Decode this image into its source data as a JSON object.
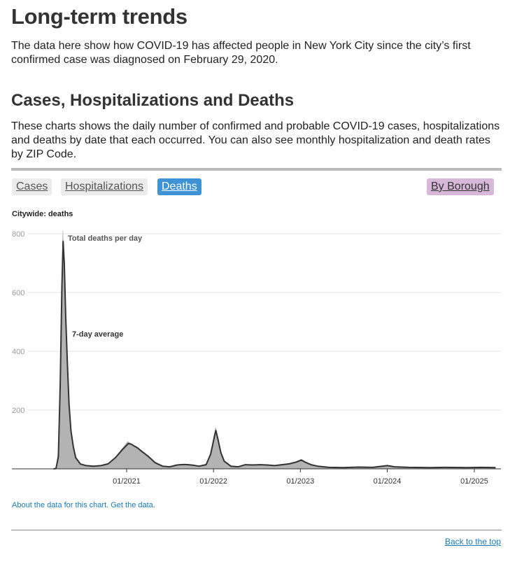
{
  "page": {
    "heading": "Long-term trends",
    "intro": "The data here show how COVID-19 has affected people in New York City since the city’s first confirmed case was diagnosed on February 29, 2020."
  },
  "section": {
    "heading": "Cases, Hospitalizations and Deaths",
    "description": "These charts shows the daily number of confirmed and probable COVID-19 cases, hospitalizations and deaths by date that each occurred. You can also see monthly hospitalization and death rates by ZIP Code."
  },
  "tabs": {
    "cases": "Cases",
    "hospitalizations": "Hospitalizations",
    "deaths": "Deaths",
    "by_borough": "By Borough",
    "active": "Deaths"
  },
  "chart_title": "Citywide: deaths",
  "links": {
    "about": "About the data for this chart. Get the data.",
    "back_to_top": "Back to the top"
  },
  "colors": {
    "area_fill": "#b3b3b3",
    "average_line": "#333333",
    "active_tab": "#3d93d6",
    "borough_tab": "#d7b8d9",
    "link": "#1a7ab8"
  },
  "chart_data": {
    "type": "area",
    "title": "",
    "xlabel": "",
    "ylabel": "",
    "ylim": [
      0,
      800
    ],
    "yticks": [
      200,
      400,
      600,
      800
    ],
    "xlim": [
      "2020-02-29",
      "2025-03-31"
    ],
    "xticks": [
      {
        "date": "2021-01-01",
        "label": "01/2021"
      },
      {
        "date": "2022-01-01",
        "label": "01/2022"
      },
      {
        "date": "2023-01-01",
        "label": "01/2023"
      },
      {
        "date": "2024-01-01",
        "label": "01/2024"
      },
      {
        "date": "2025-01-01",
        "label": "01/2025"
      }
    ],
    "grid": true,
    "annotations": [
      {
        "text": "Total deaths per day",
        "date": "2020-04-08",
        "value": 800
      },
      {
        "text": "7-day average",
        "date": "2020-04-26",
        "value": 440
      }
    ],
    "series": [
      {
        "name": "Total deaths per day",
        "points": [
          [
            "2020-02-29",
            0
          ],
          [
            "2020-03-10",
            2
          ],
          [
            "2020-03-20",
            60
          ],
          [
            "2020-03-28",
            320
          ],
          [
            "2020-04-04",
            650
          ],
          [
            "2020-04-08",
            800
          ],
          [
            "2020-04-12",
            720
          ],
          [
            "2020-04-18",
            560
          ],
          [
            "2020-04-25",
            380
          ],
          [
            "2020-05-02",
            230
          ],
          [
            "2020-05-10",
            140
          ],
          [
            "2020-05-20",
            80
          ],
          [
            "2020-06-01",
            40
          ],
          [
            "2020-06-20",
            18
          ],
          [
            "2020-07-15",
            12
          ],
          [
            "2020-08-15",
            10
          ],
          [
            "2020-09-15",
            12
          ],
          [
            "2020-10-15",
            18
          ],
          [
            "2020-11-15",
            40
          ],
          [
            "2020-12-15",
            70
          ],
          [
            "2021-01-05",
            92
          ],
          [
            "2021-01-15",
            88
          ],
          [
            "2021-01-25",
            82
          ],
          [
            "2021-02-10",
            76
          ],
          [
            "2021-03-01",
            62
          ],
          [
            "2021-04-01",
            45
          ],
          [
            "2021-05-01",
            22
          ],
          [
            "2021-06-01",
            10
          ],
          [
            "2021-07-01",
            8
          ],
          [
            "2021-08-01",
            14
          ],
          [
            "2021-09-01",
            16
          ],
          [
            "2021-10-01",
            14
          ],
          [
            "2021-11-01",
            10
          ],
          [
            "2021-12-01",
            16
          ],
          [
            "2021-12-20",
            55
          ],
          [
            "2022-01-05",
            120
          ],
          [
            "2022-01-10",
            140
          ],
          [
            "2022-01-18",
            110
          ],
          [
            "2022-02-01",
            60
          ],
          [
            "2022-02-15",
            28
          ],
          [
            "2022-03-15",
            10
          ],
          [
            "2022-04-15",
            8
          ],
          [
            "2022-05-15",
            15
          ],
          [
            "2022-06-15",
            14
          ],
          [
            "2022-07-15",
            15
          ],
          [
            "2022-08-15",
            14
          ],
          [
            "2022-09-15",
            12
          ],
          [
            "2022-10-15",
            15
          ],
          [
            "2022-11-15",
            18
          ],
          [
            "2022-12-15",
            25
          ],
          [
            "2023-01-05",
            32
          ],
          [
            "2023-01-20",
            25
          ],
          [
            "2023-02-15",
            15
          ],
          [
            "2023-03-15",
            10
          ],
          [
            "2023-05-01",
            6
          ],
          [
            "2023-07-01",
            4
          ],
          [
            "2023-09-01",
            7
          ],
          [
            "2023-11-01",
            6
          ],
          [
            "2024-01-01",
            12
          ],
          [
            "2024-02-01",
            8
          ],
          [
            "2024-04-01",
            5
          ],
          [
            "2024-07-01",
            4
          ],
          [
            "2024-09-01",
            6
          ],
          [
            "2024-12-01",
            5
          ],
          [
            "2025-02-01",
            6
          ],
          [
            "2025-03-31",
            4
          ]
        ]
      },
      {
        "name": "7-day average",
        "points": [
          [
            "2020-02-29",
            0
          ],
          [
            "2020-03-10",
            1
          ],
          [
            "2020-03-20",
            40
          ],
          [
            "2020-03-28",
            290
          ],
          [
            "2020-04-04",
            620
          ],
          [
            "2020-04-09",
            775
          ],
          [
            "2020-04-14",
            700
          ],
          [
            "2020-04-20",
            520
          ],
          [
            "2020-04-27",
            360
          ],
          [
            "2020-05-04",
            220
          ],
          [
            "2020-05-12",
            130
          ],
          [
            "2020-05-22",
            75
          ],
          [
            "2020-06-01",
            38
          ],
          [
            "2020-06-20",
            17
          ],
          [
            "2020-07-15",
            11
          ],
          [
            "2020-08-15",
            9
          ],
          [
            "2020-09-15",
            11
          ],
          [
            "2020-10-15",
            17
          ],
          [
            "2020-11-15",
            38
          ],
          [
            "2020-12-15",
            66
          ],
          [
            "2021-01-08",
            86
          ],
          [
            "2021-01-20",
            84
          ],
          [
            "2021-02-01",
            78
          ],
          [
            "2021-02-15",
            72
          ],
          [
            "2021-03-05",
            60
          ],
          [
            "2021-04-01",
            43
          ],
          [
            "2021-05-01",
            21
          ],
          [
            "2021-06-01",
            9
          ],
          [
            "2021-07-01",
            7
          ],
          [
            "2021-08-01",
            13
          ],
          [
            "2021-09-01",
            15
          ],
          [
            "2021-10-01",
            13
          ],
          [
            "2021-11-01",
            9
          ],
          [
            "2021-12-01",
            14
          ],
          [
            "2021-12-20",
            50
          ],
          [
            "2022-01-05",
            110
          ],
          [
            "2022-01-11",
            130
          ],
          [
            "2022-01-20",
            100
          ],
          [
            "2022-02-01",
            55
          ],
          [
            "2022-02-15",
            26
          ],
          [
            "2022-03-15",
            9
          ],
          [
            "2022-04-15",
            7
          ],
          [
            "2022-05-15",
            14
          ],
          [
            "2022-06-15",
            13
          ],
          [
            "2022-07-15",
            14
          ],
          [
            "2022-08-15",
            13
          ],
          [
            "2022-09-15",
            11
          ],
          [
            "2022-10-15",
            14
          ],
          [
            "2022-11-15",
            17
          ],
          [
            "2022-12-15",
            23
          ],
          [
            "2023-01-05",
            30
          ],
          [
            "2023-01-20",
            23
          ],
          [
            "2023-02-15",
            14
          ],
          [
            "2023-03-15",
            9
          ],
          [
            "2023-05-01",
            5
          ],
          [
            "2023-07-01",
            4
          ],
          [
            "2023-09-01",
            6
          ],
          [
            "2023-11-01",
            5
          ],
          [
            "2024-01-01",
            11
          ],
          [
            "2024-02-01",
            7
          ],
          [
            "2024-04-01",
            5
          ],
          [
            "2024-07-01",
            4
          ],
          [
            "2024-09-01",
            5
          ],
          [
            "2024-12-01",
            4
          ],
          [
            "2025-02-01",
            5
          ],
          [
            "2025-03-31",
            4
          ]
        ]
      }
    ]
  }
}
